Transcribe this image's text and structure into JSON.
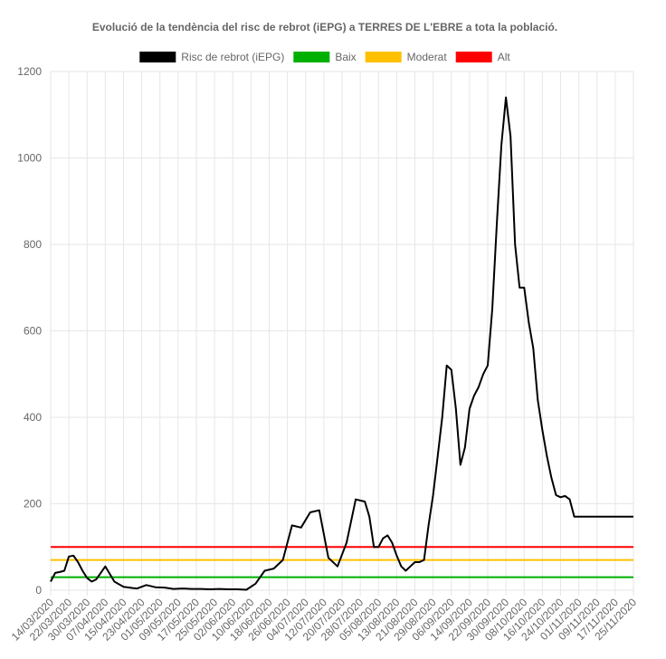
{
  "chart_data": {
    "type": "line",
    "title": "Evolució de la tendència del risc de rebrot (iEPG) a TERRES DE L'EBRE a tota la població.",
    "xlabel": "",
    "ylabel": "",
    "ylim": [
      0,
      1200
    ],
    "yticks": [
      "0",
      "200",
      "400",
      "600",
      "800",
      "1000",
      "1200"
    ],
    "grid": true,
    "legend_position": "top",
    "xticks": [
      "14/03/2020",
      "22/03/2020",
      "30/03/2020",
      "07/04/2020",
      "15/04/2020",
      "23/04/2020",
      "01/05/2020",
      "09/05/2020",
      "17/05/2020",
      "25/05/2020",
      "02/06/2020",
      "10/06/2020",
      "18/06/2020",
      "26/06/2020",
      "04/07/2020",
      "12/07/2020",
      "20/07/2020",
      "28/07/2020",
      "05/08/2020",
      "13/08/2020",
      "21/08/2020",
      "29/08/2020",
      "06/09/2020",
      "14/09/2020",
      "22/09/2020",
      "30/09/2020",
      "08/10/2020",
      "16/10/2020",
      "24/10/2020",
      "01/11/2020",
      "09/11/2020",
      "17/11/2020",
      "25/11/2020"
    ],
    "legend": [
      {
        "name": "Risc de rebrot (iEPG)",
        "color": "#000000"
      },
      {
        "name": "Baix",
        "color": "#00b000"
      },
      {
        "name": "Moderat",
        "color": "#ffc000"
      },
      {
        "name": "Alt",
        "color": "#ff0000"
      }
    ],
    "series": [
      {
        "name": "Risc de rebrot (iEPG)",
        "color": "#000000",
        "x_day": [
          0,
          2,
          4,
          6,
          8,
          10,
          12,
          14,
          16,
          18,
          20,
          24,
          28,
          32,
          36,
          38,
          42,
          46,
          50,
          54,
          58,
          62,
          66,
          70,
          74,
          78,
          82,
          86,
          90,
          94,
          98,
          102,
          106,
          110,
          114,
          118,
          122,
          126,
          130,
          134,
          138,
          140,
          142,
          144,
          146,
          148,
          150,
          152,
          154,
          156,
          158,
          160,
          162,
          164,
          166,
          168,
          170,
          172,
          174,
          176,
          178,
          180,
          182,
          184,
          186,
          188,
          190,
          192,
          194,
          196,
          198,
          200,
          202,
          204,
          206,
          208,
          210,
          212,
          214,
          216,
          218,
          220,
          222,
          224,
          226,
          228,
          230,
          232,
          234,
          236,
          238,
          240,
          242,
          244,
          246,
          248,
          250,
          252,
          254,
          256
        ],
        "y": [
          20,
          40,
          42,
          45,
          78,
          80,
          65,
          45,
          28,
          20,
          25,
          55,
          20,
          8,
          5,
          4,
          12,
          7,
          6,
          3,
          4,
          3,
          3,
          2,
          3,
          2,
          2,
          1,
          15,
          45,
          50,
          70,
          150,
          145,
          180,
          185,
          75,
          55,
          110,
          210,
          205,
          170,
          100,
          100,
          120,
          127,
          110,
          80,
          55,
          45,
          55,
          65,
          65,
          70,
          150,
          220,
          310,
          400,
          520,
          510,
          420,
          290,
          330,
          420,
          450,
          470,
          500,
          520,
          650,
          850,
          1030,
          1140,
          1050,
          800,
          700,
          700,
          620,
          560,
          440,
          370,
          310,
          260,
          220,
          215,
          218,
          210,
          170,
          170,
          170,
          170,
          170,
          170,
          170,
          170,
          170,
          170,
          170,
          170,
          170,
          170
        ]
      },
      {
        "name": "Baix",
        "color": "#00b000",
        "y": [
          30,
          30
        ]
      },
      {
        "name": "Moderat",
        "color": "#ffc000",
        "y": [
          70,
          70
        ]
      },
      {
        "name": "Alt",
        "color": "#ff0000",
        "y": [
          100,
          100
        ]
      }
    ]
  }
}
